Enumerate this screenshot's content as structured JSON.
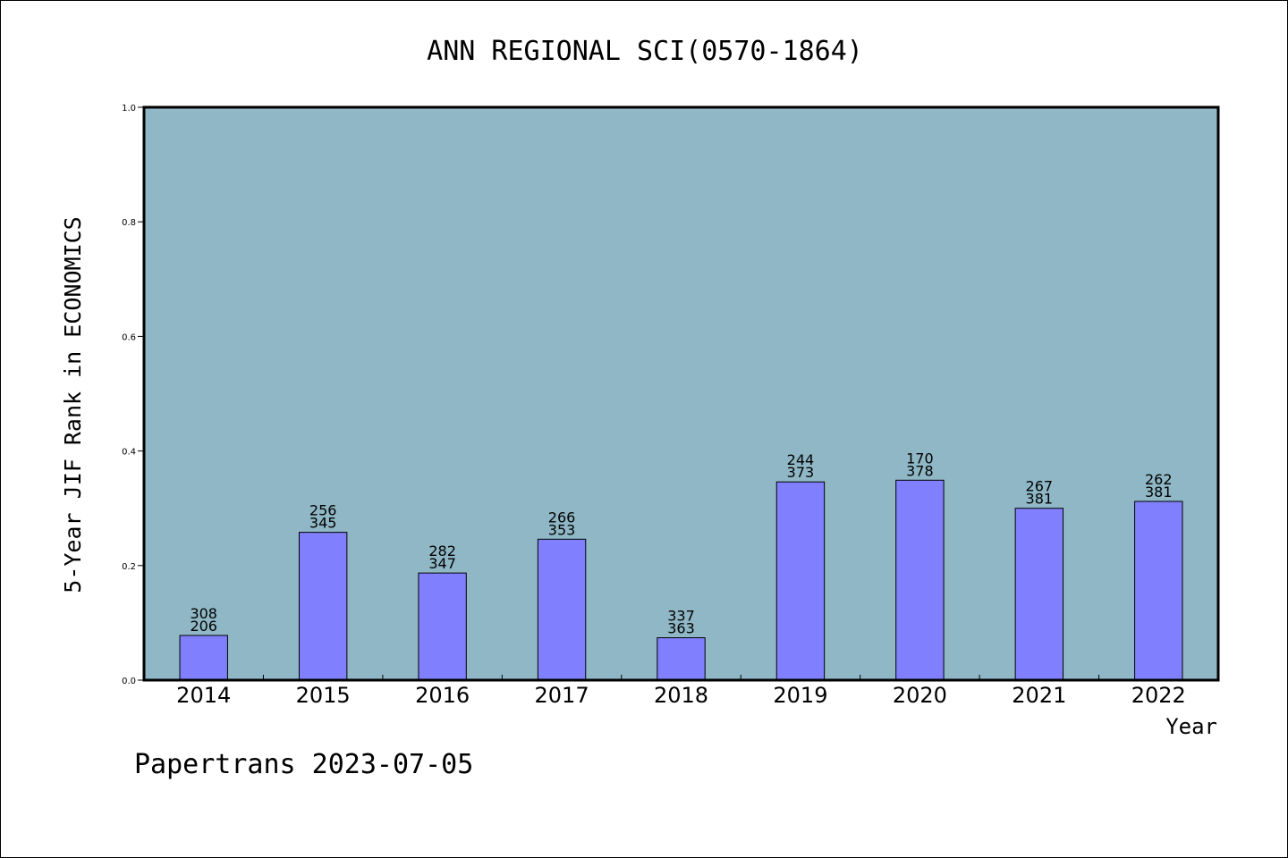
{
  "chart_data": {
    "type": "bar",
    "title": "ANN REGIONAL SCI(0570-1864)",
    "xlabel": "Year",
    "ylabel": "5-Year JIF Rank in ECONOMICS",
    "ylim": [
      0,
      1.0
    ],
    "yticks": [
      "0.0",
      "0.2",
      "0.4",
      "0.6",
      "0.8",
      "1.0"
    ],
    "grid": false,
    "colors": {
      "plot_background": "#8fb7c5",
      "bar_fill": "#8080ff",
      "bar_stroke": "#000000"
    },
    "categories": [
      "2014",
      "2015",
      "2016",
      "2017",
      "2018",
      "2019",
      "2020",
      "2021",
      "2022"
    ],
    "values": [
      0.078,
      0.258,
      0.187,
      0.246,
      0.074,
      0.346,
      0.349,
      0.3,
      0.312
    ],
    "rank_labels": [
      "308",
      "256",
      "282",
      "266",
      "337",
      "244",
      "170",
      "267",
      "262"
    ],
    "total_labels": [
      "206",
      "345",
      "347",
      "353",
      "363",
      "373",
      "378",
      "381",
      "381"
    ]
  },
  "footer": {
    "text": "Papertrans 2023-07-05"
  }
}
